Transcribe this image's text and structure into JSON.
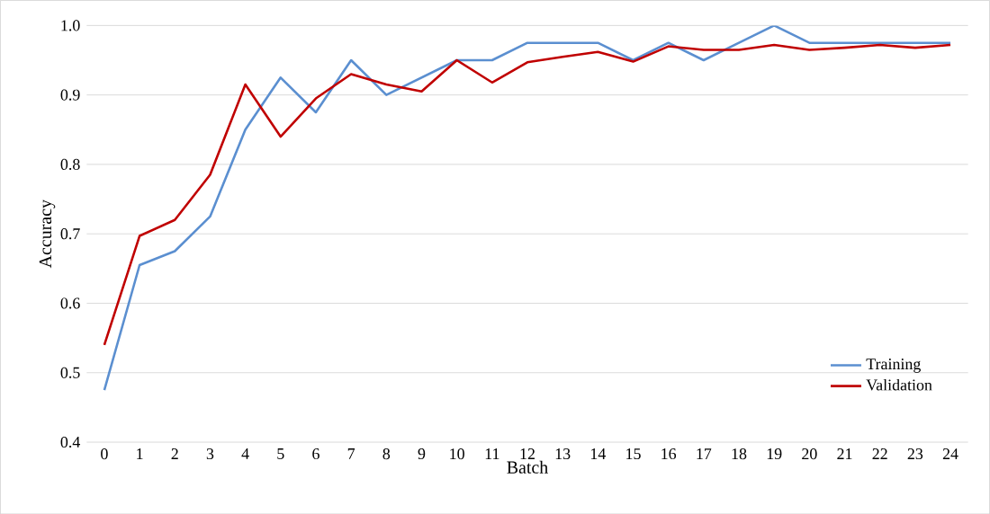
{
  "chart_data": {
    "type": "line",
    "xlabel": "Batch",
    "ylabel": "Accuracy",
    "x": [
      0,
      1,
      2,
      3,
      4,
      5,
      6,
      7,
      8,
      9,
      10,
      11,
      12,
      13,
      14,
      15,
      16,
      17,
      18,
      19,
      20,
      21,
      22,
      23,
      24
    ],
    "series": [
      {
        "name": "Training",
        "color": "#5b8fd0",
        "values": [
          0.475,
          0.655,
          0.675,
          0.725,
          0.85,
          0.925,
          0.875,
          0.95,
          0.9,
          0.925,
          0.95,
          0.95,
          0.975,
          0.975,
          0.975,
          0.95,
          0.975,
          0.95,
          0.975,
          1.0,
          0.975,
          0.975,
          0.975,
          0.975,
          0.975
        ]
      },
      {
        "name": "Validation",
        "color": "#c00000",
        "values": [
          0.54,
          0.697,
          0.72,
          0.785,
          0.915,
          0.84,
          0.895,
          0.93,
          0.915,
          0.905,
          0.95,
          0.918,
          0.947,
          0.955,
          0.962,
          0.948,
          0.97,
          0.965,
          0.965,
          0.972,
          0.965,
          0.968,
          0.972,
          0.968,
          0.972
        ]
      }
    ],
    "xlim": [
      -0.5,
      24.5
    ],
    "xticks": [
      0,
      1,
      2,
      3,
      4,
      5,
      6,
      7,
      8,
      9,
      10,
      11,
      12,
      13,
      14,
      15,
      16,
      17,
      18,
      19,
      20,
      21,
      22,
      23,
      24
    ],
    "ylim": [
      0.4,
      1.0
    ],
    "yticks": [
      {
        "value": 0.4,
        "label": "0.4"
      },
      {
        "value": 0.5,
        "label": "0.5"
      },
      {
        "value": 0.6,
        "label": "0.6"
      },
      {
        "value": 0.7,
        "label": "0.7"
      },
      {
        "value": 0.8,
        "label": "0.8"
      },
      {
        "value": 0.9,
        "label": "0.9"
      },
      {
        "value": 1.0,
        "label": "1.0"
      }
    ],
    "grid": "y",
    "legend": "bottom right",
    "marker": "none",
    "line_style": "solid"
  }
}
